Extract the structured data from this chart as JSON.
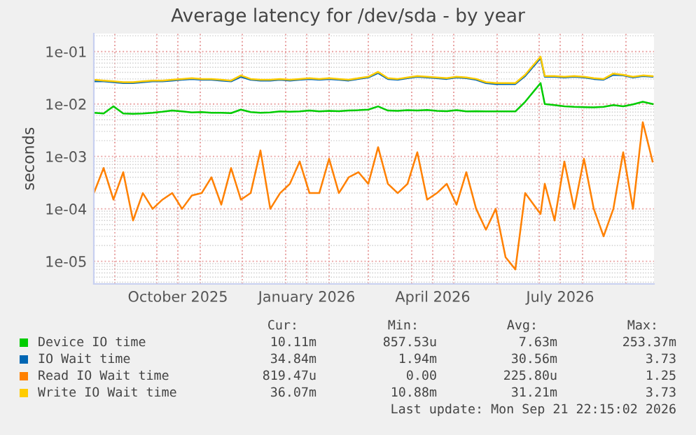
{
  "chart_data": {
    "type": "line",
    "title": "Average latency for /dev/sda - by year",
    "ylabel": "seconds",
    "x": [
      "2025-08-17",
      "2025-08-24",
      "2025-08-31",
      "2025-09-07",
      "2025-09-14",
      "2025-09-21",
      "2025-09-28",
      "2025-10-05",
      "2025-10-12",
      "2025-10-19",
      "2025-10-26",
      "2025-11-02",
      "2025-11-09",
      "2025-11-16",
      "2025-11-23",
      "2025-11-30",
      "2025-12-07",
      "2025-12-14",
      "2025-12-21",
      "2025-12-28",
      "2026-01-04",
      "2026-01-11",
      "2026-01-18",
      "2026-01-25",
      "2026-02-01",
      "2026-02-08",
      "2026-02-15",
      "2026-02-22",
      "2026-03-01",
      "2026-03-08",
      "2026-03-15",
      "2026-03-22",
      "2026-03-29",
      "2026-04-05",
      "2026-04-12",
      "2026-04-19",
      "2026-04-26",
      "2026-05-03",
      "2026-05-10",
      "2026-05-17",
      "2026-05-24",
      "2026-05-31",
      "2026-06-07",
      "2026-06-14",
      "2026-06-21",
      "2026-07-02",
      "2026-07-05",
      "2026-07-12",
      "2026-07-19",
      "2026-07-26",
      "2026-08-02",
      "2026-08-09",
      "2026-08-16",
      "2026-08-23",
      "2026-08-30",
      "2026-09-06",
      "2026-09-13",
      "2026-09-20"
    ],
    "series": [
      {
        "name": "Device IO time",
        "color": "#00cc00",
        "values": [
          0.0068,
          0.0066,
          0.009,
          0.0066,
          0.0065,
          0.0066,
          0.0068,
          0.0071,
          0.0075,
          0.0072,
          0.0069,
          0.007,
          0.0068,
          0.0068,
          0.0067,
          0.0078,
          0.007,
          0.0068,
          0.0069,
          0.0072,
          0.0071,
          0.0072,
          0.0075,
          0.0072,
          0.0074,
          0.0073,
          0.0075,
          0.0076,
          0.0078,
          0.009,
          0.0075,
          0.0074,
          0.0076,
          0.0075,
          0.0077,
          0.0074,
          0.0073,
          0.0076,
          0.0072,
          0.0073,
          0.0072,
          0.0072,
          0.0072,
          0.0072,
          0.011,
          0.025,
          0.01,
          0.0095,
          0.009,
          0.0088,
          0.0087,
          0.0086,
          0.0088,
          0.0095,
          0.009,
          0.0098,
          0.011,
          0.01
        ]
      },
      {
        "name": "IO Wait time",
        "color": "#0066b3",
        "values": [
          0.027,
          0.027,
          0.026,
          0.025,
          0.025,
          0.026,
          0.027,
          0.027,
          0.028,
          0.029,
          0.03,
          0.029,
          0.029,
          0.028,
          0.027,
          0.033,
          0.029,
          0.028,
          0.028,
          0.029,
          0.028,
          0.029,
          0.03,
          0.029,
          0.03,
          0.029,
          0.028,
          0.03,
          0.032,
          0.039,
          0.03,
          0.029,
          0.031,
          0.033,
          0.032,
          0.031,
          0.03,
          0.032,
          0.031,
          0.029,
          0.025,
          0.024,
          0.024,
          0.024,
          0.034,
          0.075,
          0.033,
          0.033,
          0.032,
          0.033,
          0.032,
          0.03,
          0.029,
          0.036,
          0.035,
          0.032,
          0.034,
          0.033
        ]
      },
      {
        "name": "Read IO Wait time",
        "color": "#ff8000",
        "values": [
          0.0002,
          0.0006,
          0.00015,
          0.0005,
          6e-05,
          0.0002,
          0.0001,
          0.00015,
          0.0002,
          0.0001,
          0.00018,
          0.0002,
          0.0004,
          0.00012,
          0.0006,
          0.00015,
          0.0002,
          0.0013,
          0.0001,
          0.0002,
          0.0003,
          0.0008,
          0.0002,
          0.0002,
          0.0009,
          0.0002,
          0.0004,
          0.0005,
          0.0003,
          0.0015,
          0.0003,
          0.0002,
          0.0003,
          0.0012,
          0.00015,
          0.0002,
          0.0003,
          0.00012,
          0.0005,
          0.0001,
          4e-05,
          0.0001,
          1.2e-05,
          7e-06,
          0.0002,
          8e-05,
          0.0003,
          6e-05,
          0.0008,
          0.0001,
          0.0009,
          0.0001,
          3e-05,
          0.0001,
          0.0012,
          0.0001,
          0.0045,
          0.0008
        ]
      },
      {
        "name": "Write IO Wait time",
        "color": "#ffcc00",
        "values": [
          0.029,
          0.028,
          0.027,
          0.026,
          0.026,
          0.027,
          0.028,
          0.028,
          0.029,
          0.03,
          0.031,
          0.03,
          0.03,
          0.029,
          0.028,
          0.035,
          0.03,
          0.029,
          0.029,
          0.03,
          0.029,
          0.03,
          0.031,
          0.03,
          0.031,
          0.03,
          0.029,
          0.031,
          0.033,
          0.041,
          0.031,
          0.03,
          0.032,
          0.034,
          0.033,
          0.032,
          0.031,
          0.033,
          0.032,
          0.03,
          0.026,
          0.025,
          0.025,
          0.025,
          0.036,
          0.08,
          0.034,
          0.034,
          0.033,
          0.034,
          0.033,
          0.031,
          0.03,
          0.038,
          0.036,
          0.033,
          0.035,
          0.034
        ]
      }
    ],
    "log": true,
    "ylim": [
      3.7e-06,
      0.22
    ],
    "yticks": [
      {
        "value": 1e-05,
        "label": "1e-05"
      },
      {
        "value": 0.0001,
        "label": "1e-04"
      },
      {
        "value": 0.001,
        "label": "1e-03"
      },
      {
        "value": 0.01,
        "label": "1e-02"
      },
      {
        "value": 0.1,
        "label": "1e-01"
      }
    ],
    "xlim": [
      "2025-08-17",
      "2026-09-21"
    ],
    "xticks": [
      {
        "value": "2025-09-01",
        "label": null
      },
      {
        "value": "2025-10-01",
        "label": null
      },
      {
        "value": "2025-10-16",
        "label": "October 2025"
      },
      {
        "value": "2025-11-01",
        "label": null
      },
      {
        "value": "2025-12-01",
        "label": null
      },
      {
        "value": "2026-01-01",
        "label": null
      },
      {
        "value": "2026-01-16",
        "label": "January 2026"
      },
      {
        "value": "2026-02-01",
        "label": null
      },
      {
        "value": "2026-03-01",
        "label": null
      },
      {
        "value": "2026-04-01",
        "label": null
      },
      {
        "value": "2026-04-16",
        "label": "April 2026"
      },
      {
        "value": "2026-05-01",
        "label": null
      },
      {
        "value": "2026-06-01",
        "label": null
      },
      {
        "value": "2026-07-01",
        "label": null
      },
      {
        "value": "2026-07-16",
        "label": "July 2026"
      },
      {
        "value": "2026-08-01",
        "label": null
      },
      {
        "value": "2026-09-01",
        "label": null
      }
    ],
    "grid": true,
    "legend": "bottom",
    "annotations": [
      "Cur:",
      "Min:",
      "Avg:",
      "Max:",
      "10.11m",
      "857.53u",
      "7.63m",
      "253.37m",
      "34.84m",
      "1.94m",
      "30.56m",
      "3.73",
      "819.47u",
      "0.00",
      "225.80u",
      "1.25",
      "36.07m",
      "10.88m",
      "31.21m",
      "3.73",
      "Last update: Mon Sep 21 22:15:02 2026"
    ]
  }
}
